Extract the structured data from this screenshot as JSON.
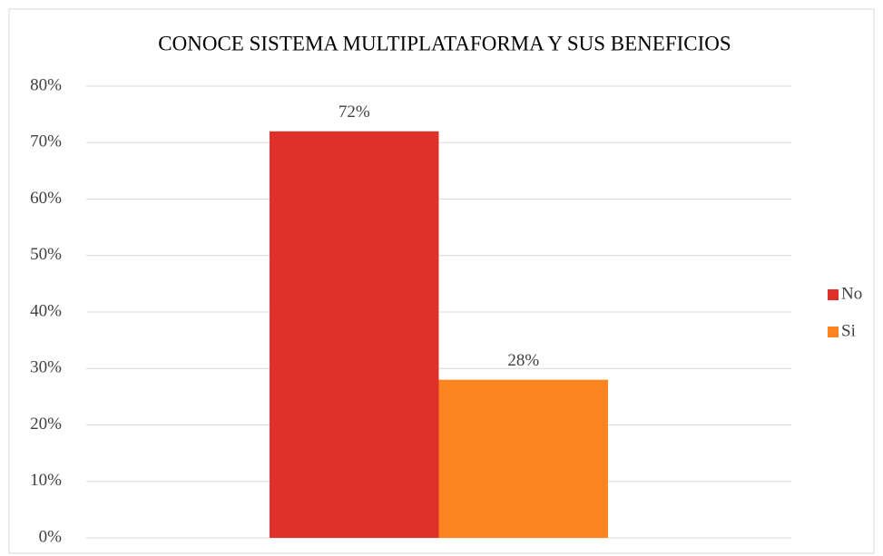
{
  "chart_data": {
    "type": "bar",
    "title": "CONOCE SISTEMA MULTIPLATAFORMA Y SUS BENEFICIOS",
    "categories": [
      null
    ],
    "series": [
      {
        "name": "No",
        "color": "#e0302a",
        "values": [
          72
        ],
        "value_labels": [
          "72%"
        ]
      },
      {
        "name": "Si",
        "color": "#fd8421",
        "values": [
          28
        ],
        "value_labels": [
          "28%"
        ]
      }
    ],
    "ylim": [
      0,
      80
    ],
    "yticks": [
      {
        "value": 0,
        "label": "0%"
      },
      {
        "value": 10,
        "label": "10%"
      },
      {
        "value": 20,
        "label": "20%"
      },
      {
        "value": 30,
        "label": "30%"
      },
      {
        "value": 40,
        "label": "40%"
      },
      {
        "value": 50,
        "label": "50%"
      },
      {
        "value": 60,
        "label": "60%"
      },
      {
        "value": 70,
        "label": "70%"
      },
      {
        "value": 80,
        "label": "80%"
      }
    ],
    "grid": true,
    "legend": "right"
  }
}
